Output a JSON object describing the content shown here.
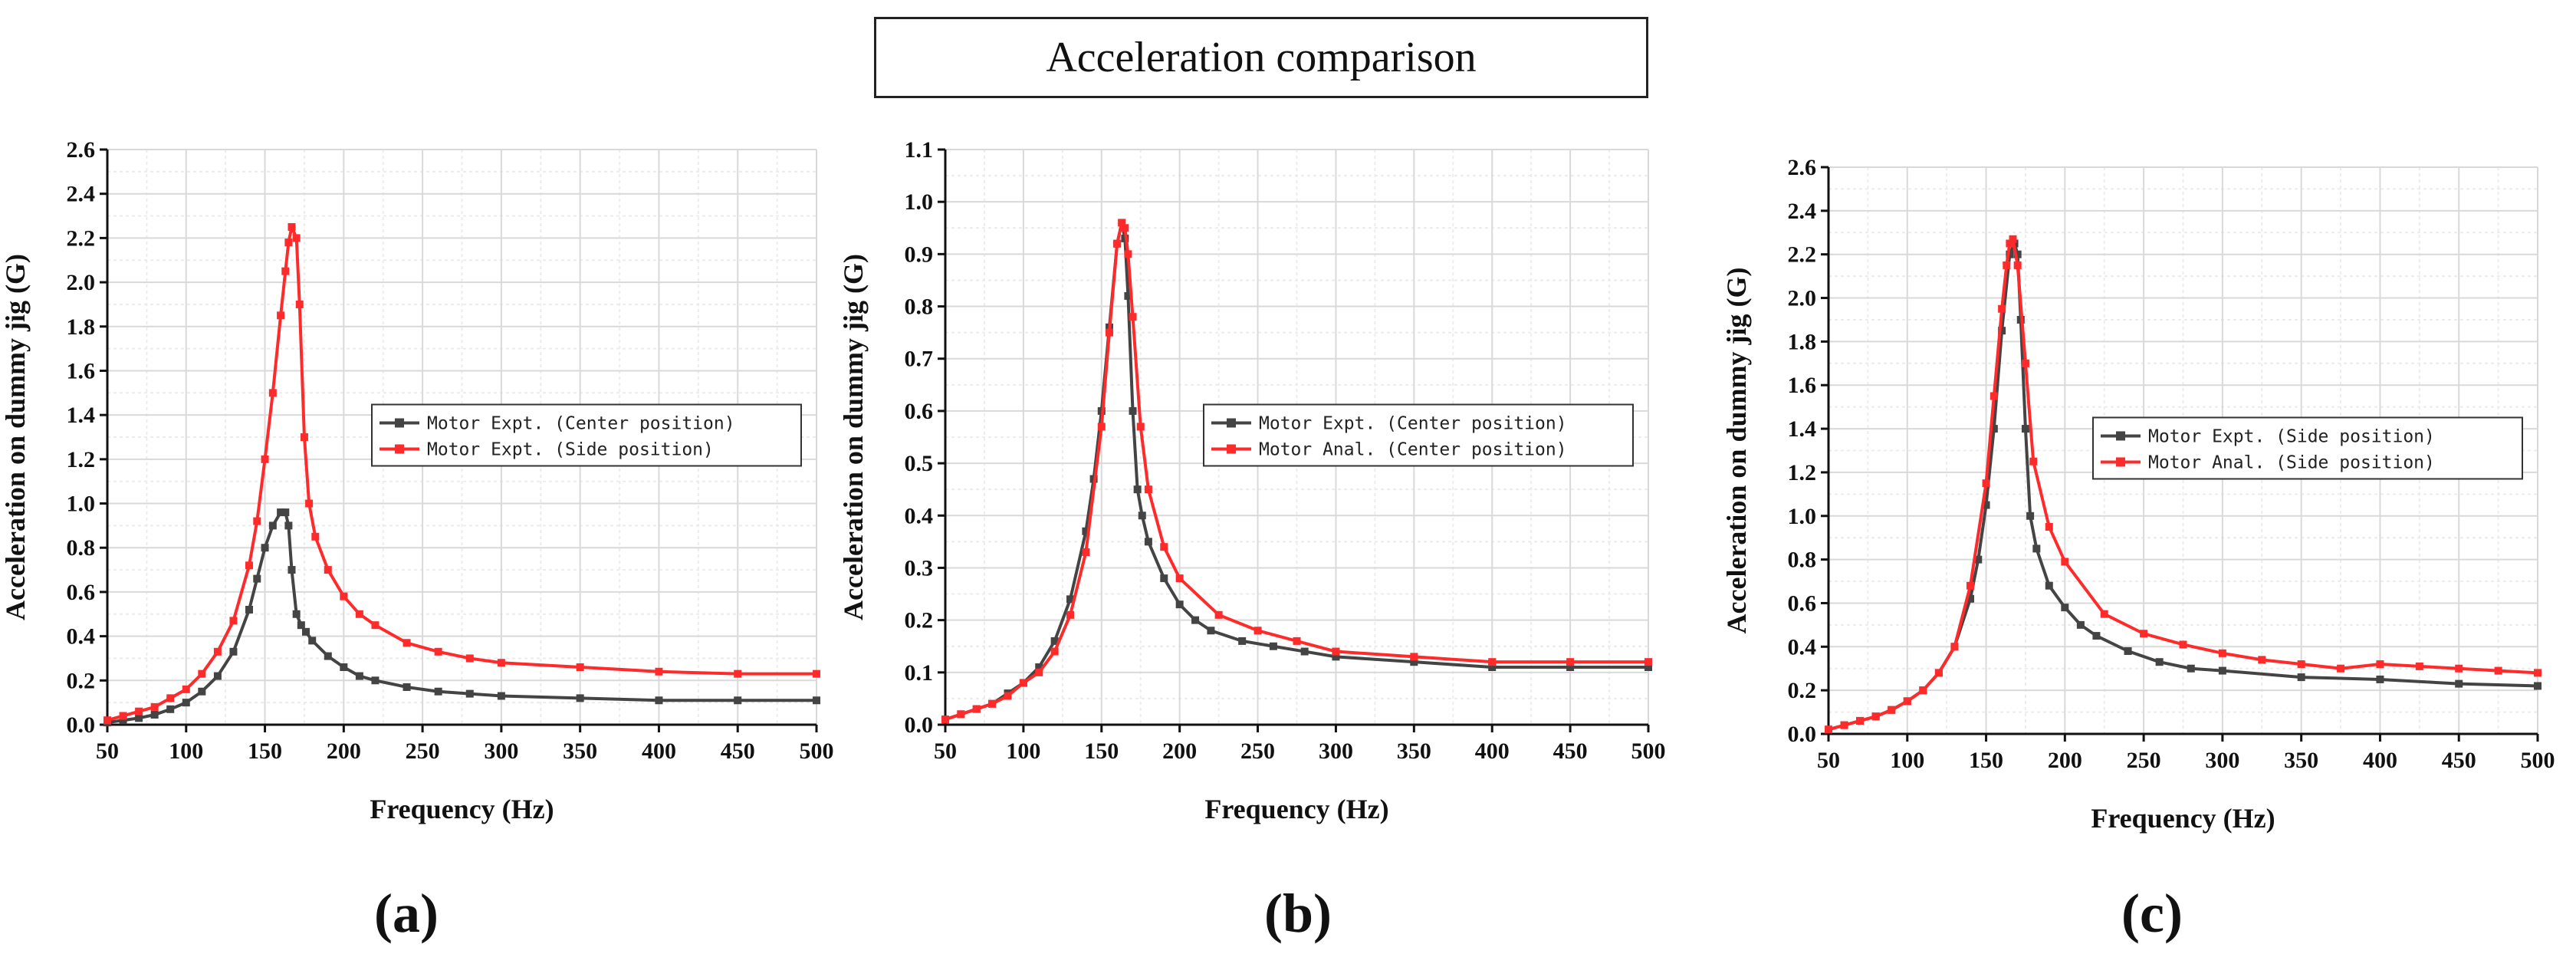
{
  "title": "Acceleration comparison",
  "colors": {
    "dark": "#444444",
    "red": "#ff2a2a",
    "grid": "#d9d9d9"
  },
  "chart_data": [
    {
      "type": "line",
      "caption": "(a)",
      "xlabel": "Frequency (Hz)",
      "ylabel": "Acceleration on dummy jig (G)",
      "xlim": [
        50,
        500
      ],
      "ylim": [
        0,
        2.6
      ],
      "xticks": [
        50,
        100,
        150,
        200,
        250,
        300,
        350,
        400,
        450,
        500
      ],
      "yticks": [
        0.0,
        0.2,
        0.4,
        0.6,
        0.8,
        1.0,
        1.2,
        1.4,
        1.6,
        1.8,
        2.0,
        2.2,
        2.4,
        2.6
      ],
      "ytick_labels": [
        "0.0",
        "0.2",
        "0.4",
        "0.6",
        "0.8",
        "1.0",
        "1.2",
        "1.4",
        "1.6",
        "1.8",
        "2.0",
        "2.2",
        "2.4",
        "2.6"
      ],
      "legend_position": "center-right",
      "series": [
        {
          "name": "Motor Expt. (Center position)",
          "color": "dark",
          "x": [
            50,
            60,
            70,
            80,
            90,
            100,
            110,
            120,
            130,
            140,
            145,
            150,
            155,
            160,
            163,
            165,
            167,
            170,
            173,
            176,
            180,
            190,
            200,
            210,
            220,
            240,
            260,
            280,
            300,
            350,
            400,
            450,
            500
          ],
          "y": [
            0.01,
            0.02,
            0.03,
            0.045,
            0.07,
            0.1,
            0.15,
            0.22,
            0.33,
            0.52,
            0.66,
            0.8,
            0.9,
            0.96,
            0.96,
            0.9,
            0.7,
            0.5,
            0.45,
            0.42,
            0.38,
            0.31,
            0.26,
            0.22,
            0.2,
            0.17,
            0.15,
            0.14,
            0.13,
            0.12,
            0.11,
            0.11,
            0.11
          ]
        },
        {
          "name": "Motor Expt. (Side position)",
          "color": "red",
          "x": [
            50,
            60,
            70,
            80,
            90,
            100,
            110,
            120,
            130,
            140,
            145,
            150,
            155,
            160,
            163,
            165,
            167,
            170,
            172,
            175,
            178,
            182,
            190,
            200,
            210,
            220,
            240,
            260,
            280,
            300,
            350,
            400,
            450,
            500
          ],
          "y": [
            0.02,
            0.04,
            0.06,
            0.08,
            0.12,
            0.16,
            0.23,
            0.33,
            0.47,
            0.72,
            0.92,
            1.2,
            1.5,
            1.85,
            2.05,
            2.18,
            2.25,
            2.2,
            1.9,
            1.3,
            1.0,
            0.85,
            0.7,
            0.58,
            0.5,
            0.45,
            0.37,
            0.33,
            0.3,
            0.28,
            0.26,
            0.24,
            0.23,
            0.23
          ]
        }
      ]
    },
    {
      "type": "line",
      "caption": "(b)",
      "xlabel": "Frequency (Hz)",
      "ylabel": "Acceleration on dummy jig (G)",
      "xlim": [
        50,
        500
      ],
      "ylim": [
        0,
        1.1
      ],
      "xticks": [
        50,
        100,
        150,
        200,
        250,
        300,
        350,
        400,
        450,
        500
      ],
      "yticks": [
        0.0,
        0.1,
        0.2,
        0.3,
        0.4,
        0.5,
        0.6,
        0.7,
        0.8,
        0.9,
        1.0,
        1.1
      ],
      "ytick_labels": [
        "0.0",
        "0.1",
        "0.2",
        "0.3",
        "0.4",
        "0.5",
        "0.6",
        "0.7",
        "0.8",
        "0.9",
        "1.0",
        "1.1"
      ],
      "legend_position": "center-right",
      "series": [
        {
          "name": "Motor Expt. (Center position)",
          "color": "dark",
          "x": [
            50,
            60,
            70,
            80,
            90,
            100,
            110,
            120,
            130,
            140,
            145,
            150,
            155,
            160,
            163,
            165,
            167,
            170,
            173,
            176,
            180,
            190,
            200,
            210,
            220,
            240,
            260,
            280,
            300,
            350,
            400,
            450,
            500
          ],
          "y": [
            0.01,
            0.02,
            0.03,
            0.04,
            0.06,
            0.08,
            0.11,
            0.16,
            0.24,
            0.37,
            0.47,
            0.6,
            0.76,
            0.92,
            0.96,
            0.93,
            0.82,
            0.6,
            0.45,
            0.4,
            0.35,
            0.28,
            0.23,
            0.2,
            0.18,
            0.16,
            0.15,
            0.14,
            0.13,
            0.12,
            0.11,
            0.11,
            0.11
          ]
        },
        {
          "name": "Motor Anal. (Center position)",
          "color": "red",
          "x": [
            50,
            60,
            70,
            80,
            90,
            100,
            110,
            120,
            130,
            140,
            150,
            155,
            160,
            163,
            165,
            167,
            170,
            175,
            180,
            190,
            200,
            225,
            250,
            275,
            300,
            350,
            400,
            450,
            500
          ],
          "y": [
            0.01,
            0.02,
            0.03,
            0.04,
            0.055,
            0.08,
            0.1,
            0.14,
            0.21,
            0.33,
            0.57,
            0.75,
            0.92,
            0.96,
            0.95,
            0.9,
            0.78,
            0.57,
            0.45,
            0.34,
            0.28,
            0.21,
            0.18,
            0.16,
            0.14,
            0.13,
            0.12,
            0.12,
            0.12
          ]
        }
      ]
    },
    {
      "type": "line",
      "caption": "(c)",
      "xlabel": "Frequency (Hz)",
      "ylabel": "Acceleration on dummy jig (G)",
      "xlim": [
        50,
        500
      ],
      "ylim": [
        0,
        2.6
      ],
      "xticks": [
        50,
        100,
        150,
        200,
        250,
        300,
        350,
        400,
        450,
        500
      ],
      "yticks": [
        0.0,
        0.2,
        0.4,
        0.6,
        0.8,
        1.0,
        1.2,
        1.4,
        1.6,
        1.8,
        2.0,
        2.2,
        2.4,
        2.6
      ],
      "ytick_labels": [
        "0.0",
        "0.2",
        "0.4",
        "0.6",
        "0.8",
        "1.0",
        "1.2",
        "1.4",
        "1.6",
        "1.8",
        "2.0",
        "2.2",
        "2.4",
        "2.6"
      ],
      "legend_position": "center-right",
      "series": [
        {
          "name": "Motor Expt. (Side position)",
          "color": "dark",
          "x": [
            50,
            60,
            70,
            80,
            90,
            100,
            110,
            120,
            130,
            140,
            145,
            150,
            155,
            160,
            165,
            168,
            170,
            172,
            175,
            178,
            182,
            190,
            200,
            210,
            220,
            240,
            260,
            280,
            300,
            350,
            400,
            450,
            500
          ],
          "y": [
            0.02,
            0.04,
            0.06,
            0.08,
            0.11,
            0.15,
            0.2,
            0.28,
            0.4,
            0.62,
            0.8,
            1.05,
            1.4,
            1.85,
            2.2,
            2.25,
            2.2,
            1.9,
            1.4,
            1.0,
            0.85,
            0.68,
            0.58,
            0.5,
            0.45,
            0.38,
            0.33,
            0.3,
            0.29,
            0.26,
            0.25,
            0.23,
            0.22
          ]
        },
        {
          "name": "Motor Anal. (Side position)",
          "color": "red",
          "x": [
            50,
            60,
            70,
            80,
            90,
            100,
            110,
            120,
            130,
            140,
            150,
            155,
            160,
            163,
            165,
            167,
            170,
            175,
            180,
            190,
            200,
            225,
            250,
            275,
            300,
            325,
            350,
            375,
            400,
            425,
            450,
            475,
            500
          ],
          "y": [
            0.02,
            0.04,
            0.06,
            0.08,
            0.11,
            0.15,
            0.2,
            0.28,
            0.4,
            0.68,
            1.15,
            1.55,
            1.95,
            2.15,
            2.25,
            2.27,
            2.15,
            1.7,
            1.25,
            0.95,
            0.79,
            0.55,
            0.46,
            0.41,
            0.37,
            0.34,
            0.32,
            0.3,
            0.32,
            0.31,
            0.3,
            0.29,
            0.28
          ]
        }
      ]
    }
  ]
}
